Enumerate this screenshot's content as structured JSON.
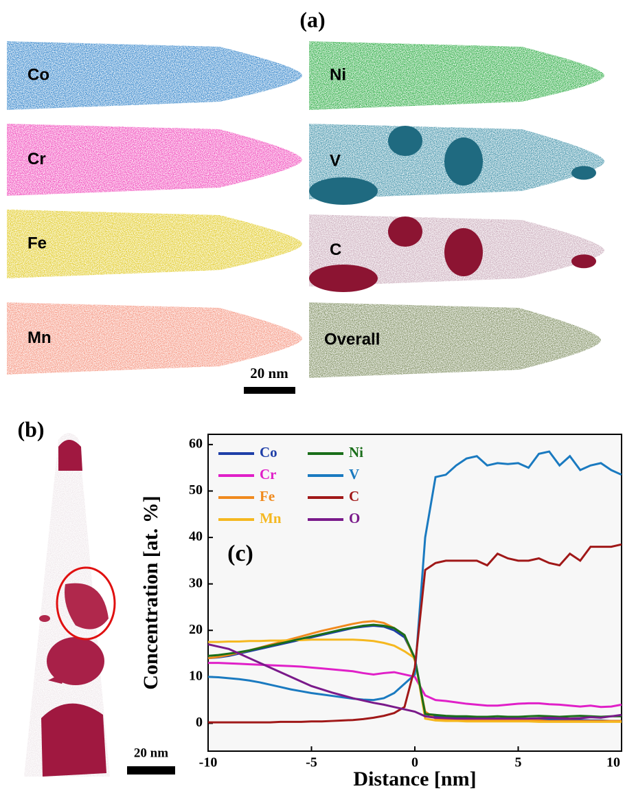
{
  "figure": {
    "a": {
      "label": "(a)",
      "scale_bar": "20 nm",
      "maps": [
        {
          "label": "Co",
          "color": "#2a7fc8"
        },
        {
          "label": "Ni",
          "color": "#22a83a"
        },
        {
          "label": "Cr",
          "color": "#f040b8"
        },
        {
          "label": "V",
          "color": "#3a8ea6"
        },
        {
          "label": "Fe",
          "color": "#e0c81a"
        },
        {
          "label": "C",
          "color": "#c8a8b8"
        },
        {
          "label": "Mn",
          "color": "#f5907a"
        },
        {
          "label": "Overall",
          "color": "#7a8a5a"
        }
      ]
    },
    "b": {
      "label": "(b)",
      "scale_bar": "20 nm"
    }
  },
  "chart_data": {
    "type": "line",
    "annotation": "(c)",
    "x_label": "Distance [nm]",
    "y_label": "Concentration [at. %]",
    "xlim": [
      -10,
      10
    ],
    "ylim": [
      -6,
      62.2
    ],
    "xticks": [
      -10,
      -5,
      0,
      5,
      10
    ],
    "yticks": [
      0,
      10,
      20,
      30,
      40,
      50,
      60
    ],
    "x": [
      -10,
      -9.5,
      -9,
      -8.5,
      -8,
      -7.5,
      -7,
      -6.5,
      -6,
      -5.5,
      -5,
      -4.5,
      -4,
      -3.5,
      -3,
      -2.5,
      -2,
      -1.5,
      -1,
      -0.5,
      0,
      0.5,
      1,
      1.5,
      2,
      2.5,
      3,
      3.5,
      4,
      4.5,
      5,
      5.5,
      6,
      6.5,
      7,
      7.5,
      8,
      8.5,
      9,
      9.5,
      10
    ],
    "series": [
      {
        "name": "Co",
        "color": "#1f3fa8",
        "values": [
          14,
          14.2,
          14.5,
          15,
          15.5,
          16,
          16.5,
          17,
          17.5,
          18,
          18.5,
          19,
          19.5,
          20,
          20.5,
          20.8,
          21,
          20.8,
          20,
          18.5,
          14,
          2,
          1.5,
          1.2,
          1.2,
          1.1,
          1,
          1,
          1,
          1,
          0.9,
          0.9,
          0.8,
          0.8,
          0.8,
          0.7,
          0.7,
          0.6,
          0.6,
          0.5,
          0.5
        ]
      },
      {
        "name": "Cr",
        "color": "#e020c8",
        "values": [
          13,
          13,
          12.9,
          12.8,
          12.7,
          12.6,
          12.5,
          12.4,
          12.3,
          12.2,
          12,
          11.8,
          11.6,
          11.4,
          11.2,
          10.8,
          10.5,
          10.8,
          11,
          10.5,
          10,
          6,
          5,
          4.8,
          4.5,
          4.2,
          4,
          3.8,
          3.8,
          4,
          4.2,
          4.3,
          4.3,
          4.1,
          4,
          3.8,
          3.6,
          3.8,
          3.5,
          3.6,
          4
        ]
      },
      {
        "name": "Fe",
        "color": "#f08a1e",
        "values": [
          14,
          14.3,
          14.7,
          15.2,
          15.7,
          16.3,
          16.9,
          17.5,
          18.1,
          18.7,
          19.3,
          19.9,
          20.4,
          20.9,
          21.4,
          21.8,
          22,
          21.6,
          20.5,
          19,
          13.5,
          2.5,
          1,
          0.8,
          0.8,
          0.7,
          0.7,
          0.7,
          0.6,
          0.6,
          0.6,
          0.6,
          0.6,
          0.5,
          0.5,
          0.5,
          0.5,
          0.5,
          0.5,
          0.5,
          0.5
        ]
      },
      {
        "name": "Mn",
        "color": "#f5b820",
        "values": [
          17.5,
          17.5,
          17.6,
          17.6,
          17.7,
          17.7,
          17.8,
          17.8,
          17.9,
          17.9,
          18,
          18,
          18,
          18,
          18,
          17.9,
          17.7,
          17.3,
          16.7,
          15.5,
          14,
          1,
          0.6,
          0.5,
          0.5,
          0.4,
          0.4,
          0.4,
          0.4,
          0.4,
          0.4,
          0.4,
          0.3,
          0.3,
          0.3,
          0.3,
          0.3,
          0.3,
          0.3,
          0.3,
          0.3
        ]
      },
      {
        "name": "Ni",
        "color": "#1a6e1a",
        "values": [
          14.5,
          14.7,
          15,
          15.3,
          15.7,
          16.2,
          16.7,
          17.2,
          17.7,
          18.2,
          18.7,
          19.2,
          19.7,
          20.2,
          20.6,
          21,
          21.2,
          21,
          20.5,
          19,
          14,
          2,
          1.8,
          1.6,
          1.5,
          1.5,
          1.4,
          1.4,
          1.5,
          1.4,
          1.4,
          1.5,
          1.6,
          1.5,
          1.4,
          1.5,
          1.6,
          1.5,
          1.4,
          1.5,
          1.5
        ]
      },
      {
        "name": "V",
        "color": "#1a7ac0",
        "values": [
          10,
          9.9,
          9.7,
          9.5,
          9.2,
          8.8,
          8.3,
          7.8,
          7.3,
          6.9,
          6.5,
          6.2,
          5.9,
          5.6,
          5.3,
          5.1,
          5,
          5.4,
          6.5,
          8.5,
          10.5,
          40,
          53,
          53.5,
          55.5,
          57,
          57.5,
          55.5,
          56,
          55.8,
          56,
          55,
          58,
          58.5,
          55.5,
          57.5,
          54.5,
          55.5,
          56,
          54.5,
          53.5
        ]
      },
      {
        "name": "C",
        "color": "#a01818",
        "values": [
          0.2,
          0.2,
          0.2,
          0.2,
          0.2,
          0.2,
          0.2,
          0.3,
          0.3,
          0.3,
          0.4,
          0.4,
          0.5,
          0.6,
          0.7,
          0.9,
          1.2,
          1.6,
          2.2,
          3.5,
          12,
          33,
          34.5,
          35,
          35,
          35,
          35,
          34,
          36.5,
          35.5,
          35,
          35,
          35.5,
          34.5,
          34,
          36.5,
          35,
          38,
          38,
          38,
          38.5
        ]
      },
      {
        "name": "O",
        "color": "#7a1a8a",
        "values": [
          17,
          16.5,
          16,
          15,
          14,
          13,
          12,
          11,
          10,
          9,
          8,
          7.3,
          6.6,
          6,
          5.4,
          4.9,
          4.4,
          4,
          3.5,
          3,
          2.5,
          1.5,
          1.2,
          1.1,
          1,
          1,
          1,
          1,
          1,
          1,
          1,
          1,
          1.1,
          1.2,
          1.1,
          1,
          1.1,
          1.3,
          1.2,
          1.5,
          1.8
        ]
      }
    ]
  }
}
